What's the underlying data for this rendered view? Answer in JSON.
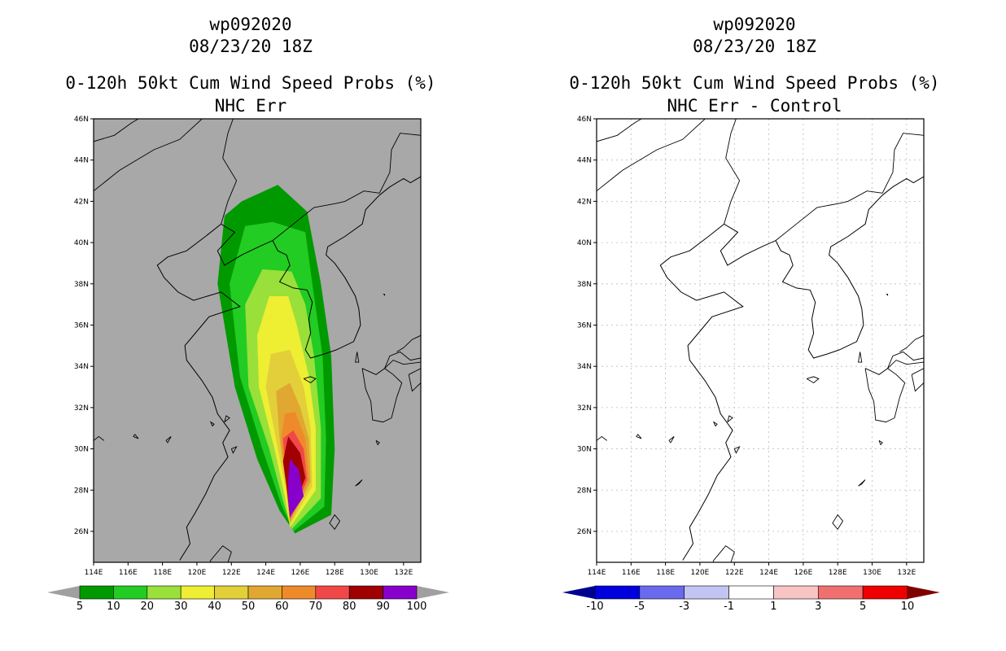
{
  "panels": [
    {
      "id": "left",
      "storm": "wp092020",
      "datetime": "08/23/20 18Z",
      "title": "0-120h 50kt Cum Wind Speed Probs (%)",
      "subtitle": "NHC Err",
      "chart_data": {
        "type": "contour-map",
        "x_ticks": [
          "114E",
          "116E",
          "118E",
          "120E",
          "122E",
          "124E",
          "126E",
          "128E",
          "130E",
          "132E"
        ],
        "y_ticks": [
          "26N",
          "28N",
          "30N",
          "32N",
          "34N",
          "36N",
          "38N",
          "40N",
          "42N",
          "44N",
          "46N"
        ],
        "lon_range": [
          114,
          133
        ],
        "lat_range": [
          24.5,
          46
        ],
        "background": "#a8a8a8",
        "legend_levels": [
          "5",
          "10",
          "20",
          "30",
          "40",
          "50",
          "60",
          "70",
          "80",
          "90",
          "100"
        ],
        "legend_colors": [
          "#009a00",
          "#22cc22",
          "#99e03a",
          "#eeee33",
          "#e2cf3a",
          "#e0a830",
          "#ef8a2a",
          "#f04848",
          "#a00000",
          "#8800cc"
        ],
        "legend_end_colors": [
          "#a0a0a0",
          "#a0a0a0"
        ],
        "contours": [
          {
            "level": 5,
            "color": "#009a00",
            "poly": [
              [
                125.7,
                25.9
              ],
              [
                127.8,
                26.8
              ],
              [
                128.0,
                30.0
              ],
              [
                127.8,
                34.5
              ],
              [
                127.2,
                38.0
              ],
              [
                126.4,
                41.5
              ],
              [
                124.7,
                42.8
              ],
              [
                122.6,
                42.0
              ],
              [
                121.6,
                41.3
              ],
              [
                121.2,
                38.0
              ],
              [
                122.2,
                33.0
              ],
              [
                123.5,
                29.5
              ],
              [
                124.8,
                27.0
              ]
            ]
          },
          {
            "level": 10,
            "color": "#22cc22",
            "poly": [
              [
                125.6,
                26.0
              ],
              [
                127.4,
                27.2
              ],
              [
                127.5,
                30.5
              ],
              [
                127.3,
                34.5
              ],
              [
                126.7,
                38.0
              ],
              [
                126.3,
                40.5
              ],
              [
                124.4,
                41.0
              ],
              [
                122.8,
                40.8
              ],
              [
                121.9,
                38.0
              ],
              [
                122.5,
                33.5
              ],
              [
                123.8,
                30.0
              ],
              [
                124.9,
                27.3
              ]
            ]
          },
          {
            "level": 20,
            "color": "#99e03a",
            "poly": [
              [
                125.5,
                26.1
              ],
              [
                127.2,
                27.6
              ],
              [
                127.2,
                31.0
              ],
              [
                126.8,
                34.5
              ],
              [
                126.3,
                37.0
              ],
              [
                125.5,
                38.6
              ],
              [
                123.8,
                38.7
              ],
              [
                122.8,
                37.0
              ],
              [
                123.0,
                33.0
              ],
              [
                124.2,
                30.0
              ],
              [
                125.0,
                27.5
              ]
            ]
          },
          {
            "level": 30,
            "color": "#eeee33",
            "poly": [
              [
                125.4,
                26.2
              ],
              [
                126.9,
                28.0
              ],
              [
                126.9,
                31.0
              ],
              [
                126.5,
                33.5
              ],
              [
                125.8,
                36.0
              ],
              [
                125.3,
                37.4
              ],
              [
                124.2,
                37.4
              ],
              [
                123.5,
                35.5
              ],
              [
                123.6,
                33.0
              ],
              [
                124.5,
                30.0
              ],
              [
                125.1,
                27.7
              ]
            ]
          },
          {
            "level": 40,
            "color": "#e2cf3a",
            "poly": [
              [
                125.4,
                26.3
              ],
              [
                126.7,
                28.2
              ],
              [
                126.6,
                31.0
              ],
              [
                126.2,
                33.0
              ],
              [
                125.4,
                34.8
              ],
              [
                124.3,
                34.6
              ],
              [
                124.0,
                33.0
              ],
              [
                124.7,
                30.0
              ],
              [
                125.2,
                27.9
              ]
            ]
          },
          {
            "level": 50,
            "color": "#e0a830",
            "poly": [
              [
                125.4,
                26.4
              ],
              [
                126.6,
                28.4
              ],
              [
                126.5,
                30.5
              ],
              [
                126.0,
                32.0
              ],
              [
                125.4,
                33.2
              ],
              [
                124.6,
                32.8
              ],
              [
                124.8,
                30.5
              ],
              [
                125.2,
                28.0
              ]
            ]
          },
          {
            "level": 60,
            "color": "#ef8a2a",
            "poly": [
              [
                125.4,
                26.5
              ],
              [
                126.5,
                28.5
              ],
              [
                126.3,
                30.5
              ],
              [
                125.7,
                31.8
              ],
              [
                125.1,
                31.7
              ],
              [
                124.9,
                30.5
              ],
              [
                125.2,
                28.2
              ]
            ]
          },
          {
            "level": 70,
            "color": "#f04848",
            "poly": [
              [
                125.4,
                26.6
              ],
              [
                126.4,
                28.5
              ],
              [
                126.2,
                30.0
              ],
              [
                125.6,
                30.9
              ],
              [
                125.0,
                30.5
              ],
              [
                125.2,
                28.5
              ]
            ]
          },
          {
            "level": 80,
            "color": "#a00000",
            "poly": [
              [
                125.4,
                26.7
              ],
              [
                126.3,
                28.6
              ],
              [
                126.0,
                29.8
              ],
              [
                125.3,
                30.6
              ],
              [
                125.0,
                29.4
              ],
              [
                125.2,
                28.2
              ]
            ]
          },
          {
            "level": 90,
            "color": "#8800cc",
            "poly": [
              [
                125.4,
                26.7
              ],
              [
                126.2,
                27.7
              ],
              [
                125.9,
                29.0
              ],
              [
                125.4,
                29.5
              ],
              [
                125.3,
                28.5
              ],
              [
                125.3,
                27.5
              ]
            ]
          }
        ]
      }
    },
    {
      "id": "right",
      "storm": "wp092020",
      "datetime": "08/23/20 18Z",
      "title": "0-120h 50kt Cum Wind Speed Probs (%)",
      "subtitle": "NHC Err - Control",
      "chart_data": {
        "type": "contour-map",
        "x_ticks": [
          "114E",
          "116E",
          "118E",
          "120E",
          "122E",
          "124E",
          "126E",
          "128E",
          "130E",
          "132E"
        ],
        "y_ticks": [
          "26N",
          "28N",
          "30N",
          "32N",
          "34N",
          "36N",
          "38N",
          "40N",
          "42N",
          "44N",
          "46N"
        ],
        "lon_range": [
          114,
          133
        ],
        "lat_range": [
          24.5,
          46
        ],
        "background": "#ffffff",
        "grid": true,
        "legend_levels": [
          "-10",
          "-5",
          "-3",
          "-1",
          "1",
          "3",
          "5",
          "10"
        ],
        "legend_colors": [
          "#0000dd",
          "#6a6aee",
          "#c4c4f4",
          "#ffffff",
          "#f8c4c4",
          "#f07070",
          "#ee0000"
        ],
        "legend_end_colors": [
          "#000090",
          "#800000"
        ],
        "contours": []
      }
    }
  ]
}
